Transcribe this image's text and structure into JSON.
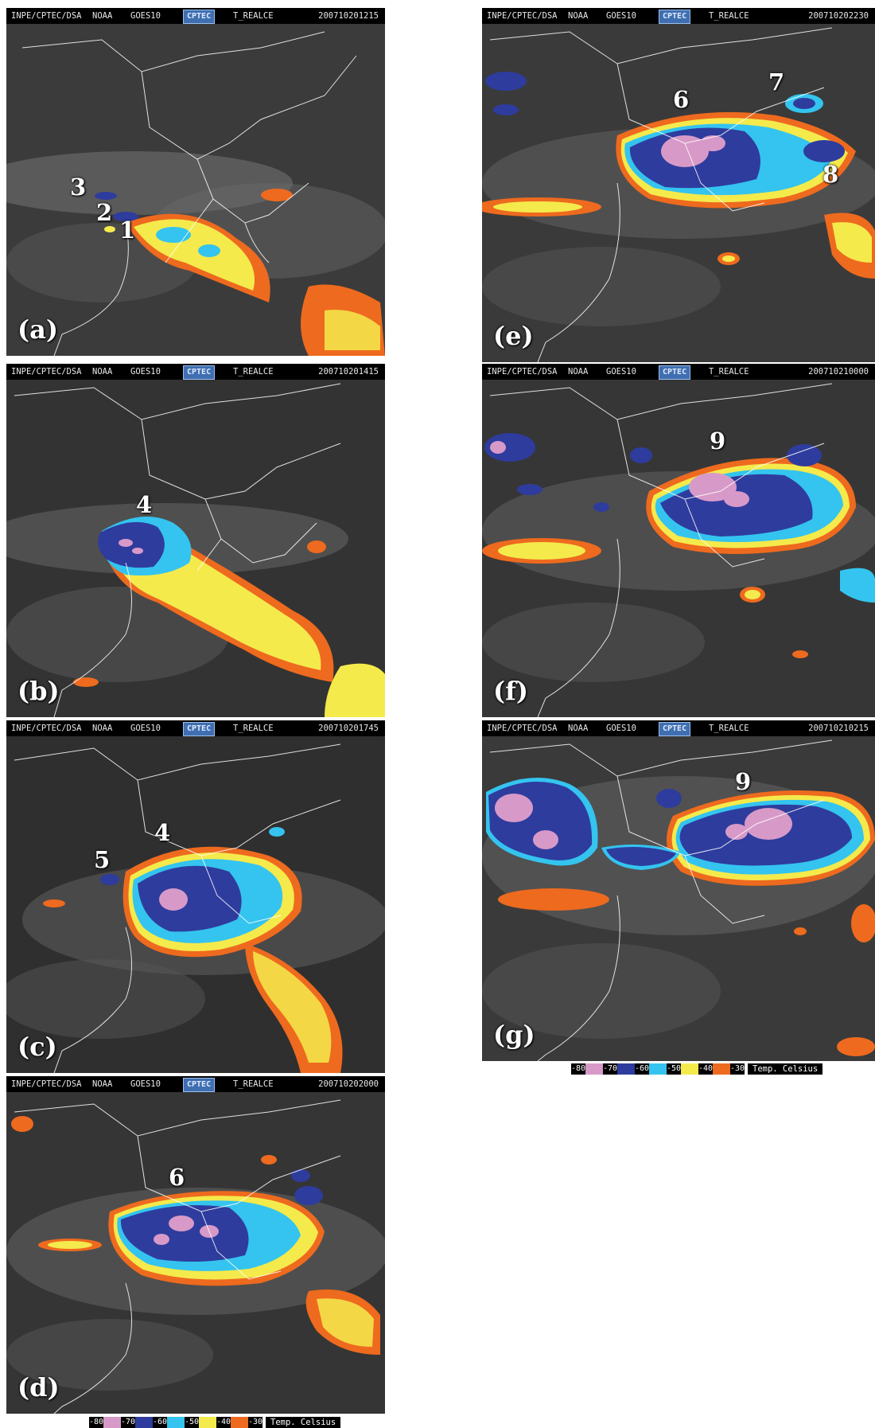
{
  "header": {
    "source": "INPE/CPTEC/DSA",
    "agency": "NOAA",
    "satellite": "GOES10",
    "logo_text": "CPTEC",
    "product": "T_REALCE"
  },
  "panels": [
    {
      "label": "(a)",
      "timestamp": "200710201215",
      "systems": [
        "3",
        "2",
        "1"
      ]
    },
    {
      "label": "(b)",
      "timestamp": "200710201415",
      "systems": [
        "4"
      ]
    },
    {
      "label": "(c)",
      "timestamp": "200710201745",
      "systems": [
        "5",
        "4"
      ]
    },
    {
      "label": "(d)",
      "timestamp": "200710202000",
      "systems": [
        "6"
      ]
    },
    {
      "label": "(e)",
      "timestamp": "200710202230",
      "systems": [
        "6",
        "7",
        "8"
      ]
    },
    {
      "label": "(f)",
      "timestamp": "200710210000",
      "systems": [
        "9"
      ]
    },
    {
      "label": "(g)",
      "timestamp": "200710210215",
      "systems": [
        "9"
      ]
    }
  ],
  "legend": {
    "ticks": [
      "-80",
      "-70",
      "-60",
      "-50",
      "-40",
      "-30"
    ],
    "colors": [
      "#d79ac8",
      "#2e3c9e",
      "#34c4ef",
      "#f4ea4c",
      "#ee6a1e",
      "#ee6a1e"
    ],
    "unit_label": "Temp. Celsius"
  },
  "palette": {
    "pink": "#d79ac8",
    "blue": "#2e3c9e",
    "cyan": "#34c4ef",
    "yellow": "#f4ea4c",
    "orange": "#ee6a1e"
  }
}
